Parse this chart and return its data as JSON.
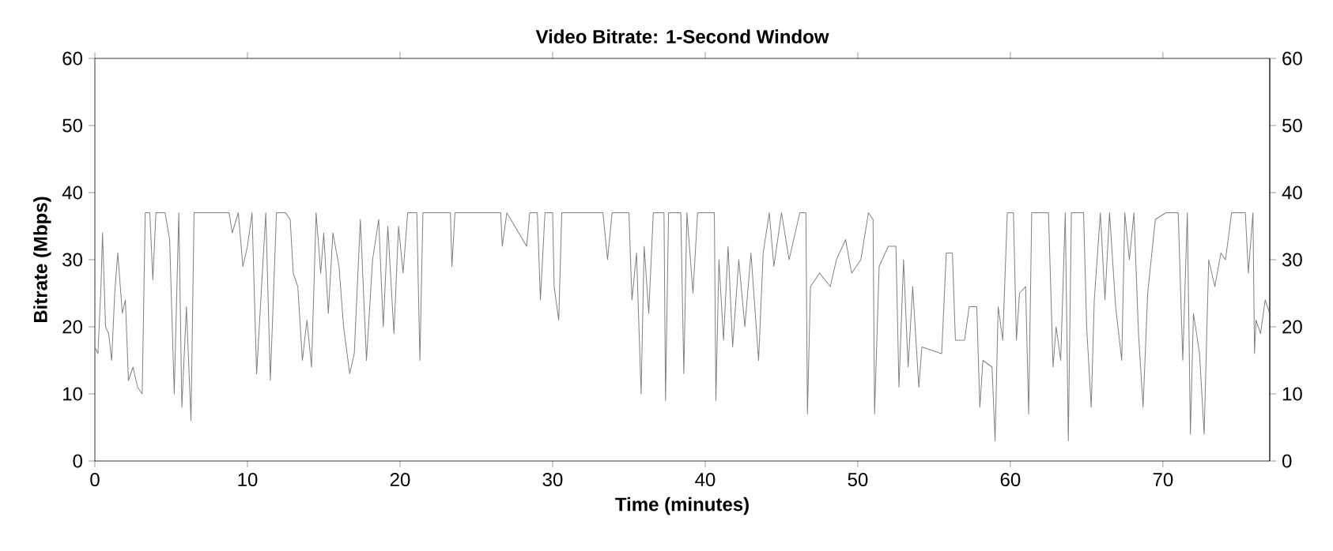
{
  "chart_data": {
    "type": "line",
    "title": "Video Bitrate: 1-Second Window",
    "xlabel": "Time (minutes)",
    "ylabel": "Bitrate (Mbps)",
    "xlim": [
      0,
      77
    ],
    "xticks": [
      0,
      10,
      20,
      30,
      40,
      50,
      60,
      70
    ],
    "ylim": [
      0,
      60
    ],
    "yticks": [
      0,
      10,
      20,
      30,
      40,
      50,
      60
    ],
    "y2lim": [
      0,
      60
    ],
    "y2ticks": [
      0,
      10,
      20,
      30,
      40,
      50,
      60
    ],
    "grid": false,
    "legend": false,
    "marker": "none",
    "line_style": "solid",
    "series": [
      {
        "color": "#808080",
        "x": [
          0,
          0.2,
          0.4,
          0.5,
          0.7,
          0.9,
          1.1,
          1.3,
          1.5,
          1.8,
          2.0,
          2.2,
          2.5,
          2.8,
          3.1,
          3.3,
          3.6,
          3.8,
          4.0,
          4.6,
          4.9,
          5.2,
          5.5,
          5.7,
          6.0,
          6.3,
          6.5,
          8.8,
          9.0,
          9.4,
          9.7,
          10.0,
          10.3,
          10.6,
          10.9,
          11.2,
          11.5,
          11.9,
          12.5,
          12.8,
          13.0,
          13.3,
          13.6,
          13.9,
          14.2,
          14.5,
          14.8,
          15.0,
          15.3,
          15.6,
          16.0,
          16.3,
          16.7,
          17.0,
          17.4,
          17.8,
          18.2,
          18.6,
          18.9,
          19.2,
          19.6,
          19.9,
          20.2,
          20.5,
          21.1,
          21.3,
          21.5,
          23.3,
          23.4,
          23.6,
          26.6,
          26.7,
          27.0,
          28.3,
          28.5,
          29.0,
          29.2,
          29.5,
          30.0,
          30.1,
          30.4,
          30.6,
          33.3,
          33.6,
          33.9,
          35.0,
          35.2,
          35.5,
          35.8,
          36.0,
          36.3,
          36.6,
          37.3,
          37.4,
          37.6,
          38.4,
          38.6,
          38.8,
          39.2,
          39.5,
          40.6,
          40.7,
          40.9,
          41.2,
          41.5,
          41.8,
          42.2,
          42.6,
          43.0,
          43.5,
          43.8,
          44.2,
          44.5,
          45.0,
          45.5,
          46.2,
          46.6,
          46.7,
          46.9,
          47.5,
          48.2,
          48.6,
          49.2,
          49.6,
          50.2,
          50.7,
          51.0,
          51.1,
          51.4,
          52.0,
          52.5,
          52.7,
          53.0,
          53.3,
          53.6,
          54.0,
          54.2,
          55.5,
          55.8,
          56.2,
          56.4,
          57.0,
          57.3,
          57.8,
          58.0,
          58.2,
          58.8,
          59.0,
          59.2,
          59.5,
          59.8,
          60.2,
          60.4,
          60.6,
          61.0,
          61.2,
          61.4,
          62.5,
          62.8,
          63.0,
          63.3,
          63.6,
          63.8,
          64.0,
          64.8,
          65.0,
          65.3,
          65.5,
          65.9,
          66.2,
          66.5,
          66.9,
          67.3,
          67.5,
          67.8,
          68.1,
          68.4,
          68.7,
          69.0,
          69.5,
          70.2,
          71.0,
          71.3,
          71.6,
          71.8,
          72.0,
          72.4,
          72.7,
          73.0,
          73.4,
          73.8,
          74.1,
          74.5,
          75.4,
          75.6,
          75.9,
          76.0,
          76.1,
          76.4,
          76.7,
          77
        ],
        "values": [
          17,
          16,
          26,
          34,
          20,
          19,
          15,
          25,
          31,
          22,
          24,
          12,
          14,
          11,
          10,
          37,
          37,
          27,
          37,
          37,
          33,
          10,
          37,
          8,
          23,
          6,
          37,
          37,
          34,
          37,
          29,
          32,
          37,
          13,
          25,
          37,
          12,
          37,
          37,
          36,
          28,
          26,
          15,
          21,
          14,
          37,
          28,
          34,
          22,
          34,
          29,
          20,
          13,
          16,
          36,
          15,
          30,
          36,
          20,
          35,
          19,
          35,
          28,
          37,
          37,
          15,
          37,
          37,
          29,
          37,
          37,
          32,
          37,
          32,
          37,
          37,
          24,
          37,
          37,
          26,
          21,
          37,
          37,
          30,
          37,
          37,
          24,
          31,
          10,
          32,
          22,
          37,
          37,
          9,
          37,
          37,
          13,
          37,
          25,
          37,
          37,
          9,
          30,
          18,
          32,
          17,
          30,
          20,
          31,
          15,
          31,
          37,
          29,
          37,
          30,
          37,
          37,
          7,
          26,
          28,
          26,
          30,
          33,
          28,
          30,
          37,
          36,
          7,
          29,
          32,
          32,
          11,
          30,
          14,
          26,
          11,
          17,
          16,
          31,
          31,
          18,
          18,
          23,
          23,
          8,
          15,
          14,
          3,
          23,
          18,
          37,
          37,
          18,
          25,
          26,
          7,
          37,
          37,
          14,
          20,
          15,
          37,
          3,
          37,
          37,
          20,
          8,
          24,
          37,
          24,
          37,
          23,
          15,
          37,
          30,
          37,
          19,
          8,
          25,
          36,
          37,
          37,
          15,
          37,
          4,
          22,
          16,
          4,
          30,
          26,
          31,
          30,
          37,
          37,
          28,
          37,
          16,
          21,
          19,
          24,
          22
        ]
      }
    ]
  }
}
